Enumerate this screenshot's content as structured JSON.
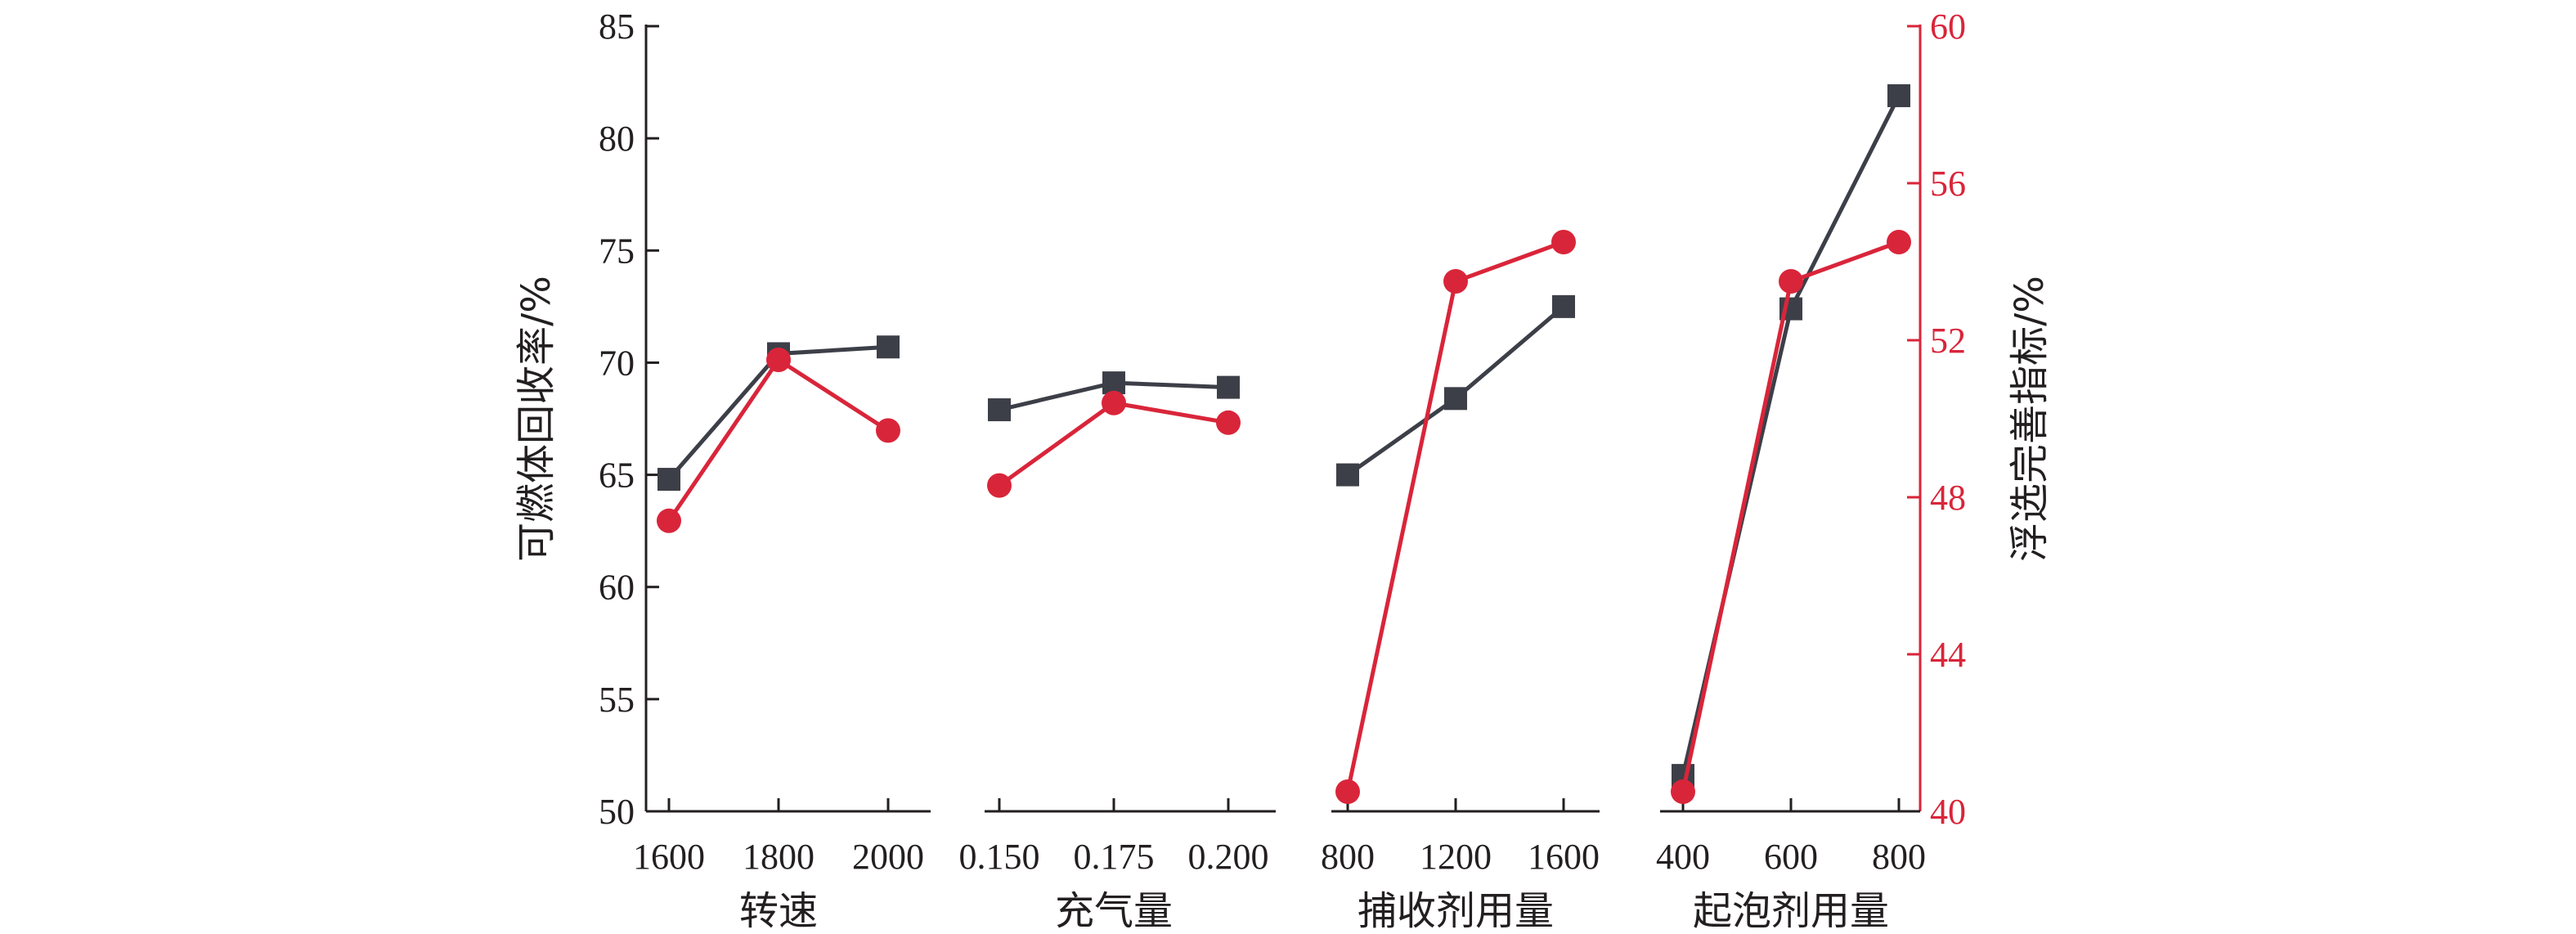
{
  "colors": {
    "left_series": "#3d3f48",
    "right_series": "#d9253a",
    "axis": "#231f20",
    "right_axis": "#d9253a"
  },
  "chart_data": {
    "type": "line",
    "left_axis": {
      "label": "可燃体回收率/%",
      "ylim": [
        50,
        85
      ],
      "ticks": [
        "50",
        "55",
        "60",
        "65",
        "70",
        "75",
        "80",
        "85"
      ]
    },
    "right_axis": {
      "label": "浮选完善指标/%",
      "ylim": [
        40,
        60
      ],
      "ticks": [
        "40",
        "44",
        "48",
        "52",
        "56",
        "60"
      ]
    },
    "panels": [
      {
        "xlabel": "转速",
        "categories": [
          "1600",
          "1800",
          "2000"
        ],
        "series": [
          {
            "axis": "left",
            "marker": "square",
            "values": [
              64.8,
              70.4,
              70.7
            ]
          },
          {
            "axis": "right",
            "marker": "circle",
            "values": [
              47.4,
              51.5,
              49.7
            ]
          }
        ]
      },
      {
        "xlabel": "充气量",
        "categories": [
          "0.150",
          "0.175",
          "0.200"
        ],
        "series": [
          {
            "axis": "left",
            "marker": "square",
            "values": [
              67.9,
              69.1,
              68.9
            ]
          },
          {
            "axis": "right",
            "marker": "circle",
            "values": [
              48.3,
              50.4,
              49.9
            ]
          }
        ]
      },
      {
        "xlabel": "捕收剂用量",
        "categories": [
          "800",
          "1200",
          "1600"
        ],
        "series": [
          {
            "axis": "left",
            "marker": "square",
            "values": [
              65.0,
              68.4,
              72.5
            ]
          },
          {
            "axis": "right",
            "marker": "circle",
            "values": [
              40.5,
              53.5,
              54.5
            ]
          }
        ]
      },
      {
        "xlabel": "起泡剂用量",
        "categories": [
          "400",
          "600",
          "800"
        ],
        "series": [
          {
            "axis": "left",
            "marker": "square",
            "values": [
              51.6,
              72.4,
              81.9
            ]
          },
          {
            "axis": "right",
            "marker": "circle",
            "values": [
              40.5,
              53.5,
              54.5
            ]
          }
        ]
      }
    ]
  }
}
